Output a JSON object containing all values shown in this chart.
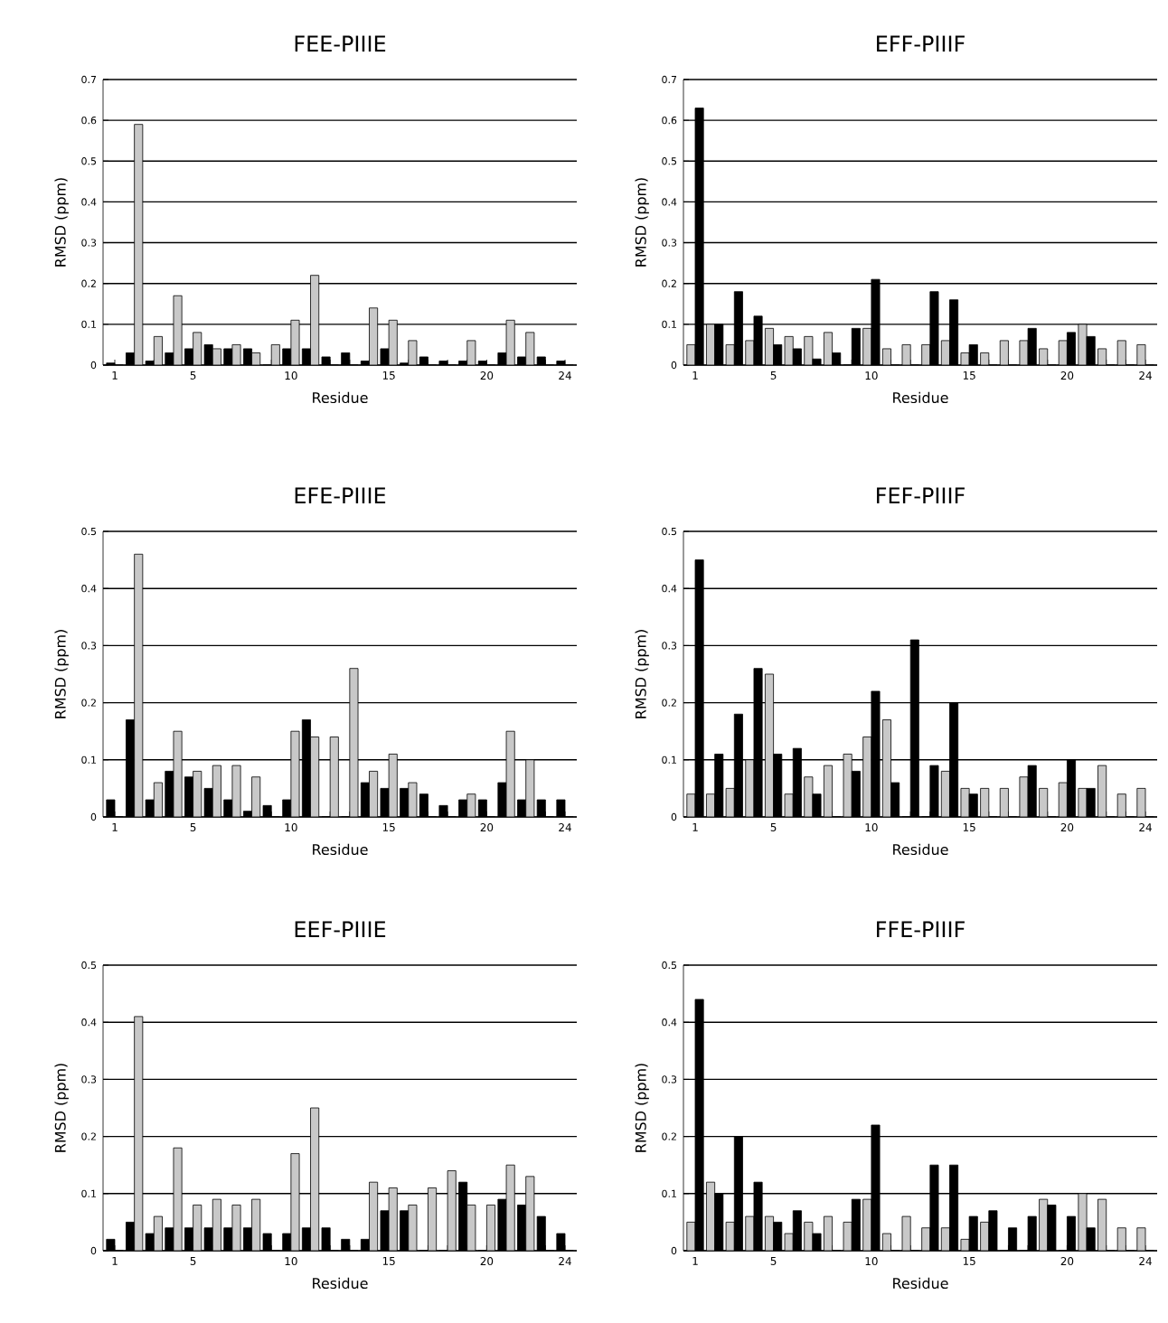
{
  "chart_data": [
    {
      "type": "bar",
      "title": "FEE-PIIIE",
      "xlabel": "Residue",
      "ylabel": "RMSD (ppm)",
      "categories": [
        "1",
        null,
        null,
        null,
        "5",
        null,
        null,
        null,
        null,
        "10",
        null,
        null,
        null,
        null,
        "15",
        null,
        null,
        null,
        null,
        "20",
        null,
        null,
        null,
        "24"
      ],
      "ylim": [
        0,
        0.7
      ],
      "yticks": [
        0,
        0.1,
        0.2,
        0.3,
        0.4,
        0.5,
        0.6,
        0.7
      ],
      "grid": "y",
      "series": [
        {
          "color": "#000000",
          "values": [
            0.005,
            0.03,
            0.01,
            0.03,
            0.04,
            0.05,
            0.04,
            0.04,
            0,
            0.04,
            0.04,
            0.02,
            0.03,
            0.01,
            0.04,
            0.005,
            0.02,
            0.01,
            0.01,
            0.01,
            0.03,
            0.02,
            0.02,
            0.01
          ]
        },
        {
          "color": "#c8c8c8",
          "values": [
            0,
            0.59,
            0.07,
            0.17,
            0.08,
            0.04,
            0.05,
            0.03,
            0.05,
            0.11,
            0.22,
            0,
            0,
            0.14,
            0.11,
            0.06,
            0,
            0,
            0.06,
            0,
            0.11,
            0.08,
            0,
            0
          ]
        }
      ]
    },
    {
      "type": "bar",
      "title": "EFF-PIIIF",
      "xlabel": "Residue",
      "ylabel": "RMSD (ppm)",
      "categories": [
        "1",
        null,
        null,
        null,
        "5",
        null,
        null,
        null,
        null,
        "10",
        null,
        null,
        null,
        null,
        "15",
        null,
        null,
        null,
        null,
        "20",
        null,
        null,
        null,
        "24"
      ],
      "ylim": [
        0,
        0.7
      ],
      "yticks": [
        0,
        0.1,
        0.2,
        0.3,
        0.4,
        0.5,
        0.6,
        0.7
      ],
      "grid": "y",
      "series": [
        {
          "color": "#c8c8c8",
          "values": [
            0.05,
            0.1,
            0.05,
            0.06,
            0.09,
            0.07,
            0.07,
            0.08,
            0,
            0.09,
            0.04,
            0.05,
            0.05,
            0.06,
            0.03,
            0.03,
            0.06,
            0.06,
            0.04,
            0.06,
            0.1,
            0.04,
            0.06,
            0.05
          ]
        },
        {
          "color": "#000000",
          "values": [
            0.63,
            0.1,
            0.18,
            0.12,
            0.05,
            0.04,
            0.015,
            0.03,
            0.09,
            0.21,
            0,
            0,
            0.18,
            0.16,
            0.05,
            0,
            0,
            0.09,
            0,
            0.08,
            0.07,
            0,
            0,
            0
          ]
        }
      ]
    },
    {
      "type": "bar",
      "title": "EFE-PIIIE",
      "xlabel": "Residue",
      "ylabel": "RMSD (ppm)",
      "categories": [
        "1",
        null,
        null,
        null,
        "5",
        null,
        null,
        null,
        null,
        "10",
        null,
        null,
        null,
        null,
        "15",
        null,
        null,
        null,
        null,
        "20",
        null,
        null,
        null,
        "24"
      ],
      "ylim": [
        0,
        0.5
      ],
      "yticks": [
        0,
        0.1,
        0.2,
        0.3,
        0.4,
        0.5
      ],
      "grid": "y",
      "series": [
        {
          "color": "#000000",
          "values": [
            0.03,
            0.17,
            0.03,
            0.08,
            0.07,
            0.05,
            0.03,
            0.01,
            0.02,
            0.03,
            0.17,
            0,
            0,
            0.06,
            0.05,
            0.05,
            0.04,
            0.02,
            0.03,
            0.03,
            0.06,
            0.03,
            0.03,
            0.03
          ]
        },
        {
          "color": "#c8c8c8",
          "values": [
            0,
            0.46,
            0.06,
            0.15,
            0.08,
            0.09,
            0.09,
            0.07,
            0,
            0.15,
            0.14,
            0.14,
            0.26,
            0.08,
            0.11,
            0.06,
            0,
            0,
            0.04,
            0,
            0.15,
            0.1,
            0,
            0
          ]
        }
      ]
    },
    {
      "type": "bar",
      "title": "FEF-PIIIF",
      "xlabel": "Residue",
      "ylabel": "RMSD (ppm)",
      "categories": [
        "1",
        null,
        null,
        null,
        "5",
        null,
        null,
        null,
        null,
        "10",
        null,
        null,
        null,
        null,
        "15",
        null,
        null,
        null,
        null,
        "20",
        null,
        null,
        null,
        "24"
      ],
      "ylim": [
        0,
        0.5
      ],
      "yticks": [
        0,
        0.1,
        0.2,
        0.3,
        0.4,
        0.5
      ],
      "grid": "y",
      "series": [
        {
          "color": "#c8c8c8",
          "values": [
            0.04,
            0.04,
            0.05,
            0.1,
            0.25,
            0.04,
            0.07,
            0.09,
            0.11,
            0.14,
            0.17,
            0,
            0,
            0.08,
            0.05,
            0.05,
            0.05,
            0.07,
            0.05,
            0.06,
            0.05,
            0.09,
            0.04,
            0.05
          ]
        },
        {
          "color": "#000000",
          "values": [
            0.45,
            0.11,
            0.18,
            0.26,
            0.11,
            0.12,
            0.04,
            0,
            0.08,
            0.22,
            0.06,
            0.31,
            0.09,
            0.2,
            0.04,
            0,
            0,
            0.09,
            0,
            0.1,
            0.05,
            0,
            0,
            0
          ]
        }
      ]
    },
    {
      "type": "bar",
      "title": "EEF-PIIIE",
      "xlabel": "Residue",
      "ylabel": "RMSD (ppm)",
      "categories": [
        "1",
        null,
        null,
        null,
        "5",
        null,
        null,
        null,
        null,
        "10",
        null,
        null,
        null,
        null,
        "15",
        null,
        null,
        null,
        null,
        "20",
        null,
        null,
        null,
        "24"
      ],
      "ylim": [
        0,
        0.5
      ],
      "yticks": [
        0,
        0.1,
        0.2,
        0.3,
        0.4,
        0.5
      ],
      "grid": "y",
      "series": [
        {
          "color": "#000000",
          "values": [
            0.02,
            0.05,
            0.03,
            0.04,
            0.04,
            0.04,
            0.04,
            0.04,
            0.03,
            0.03,
            0.04,
            0.04,
            0.02,
            0.02,
            0.07,
            0.07,
            0,
            0,
            0.12,
            0,
            0.09,
            0.08,
            0.06,
            0.03
          ]
        },
        {
          "color": "#c8c8c8",
          "values": [
            0,
            0.41,
            0.06,
            0.18,
            0.08,
            0.09,
            0.08,
            0.09,
            0,
            0.17,
            0.25,
            0,
            0,
            0.12,
            0.11,
            0.08,
            0.11,
            0.14,
            0.08,
            0.08,
            0.15,
            0.13,
            0,
            0
          ]
        }
      ]
    },
    {
      "type": "bar",
      "title": "FFE-PIIIF",
      "xlabel": "Residue",
      "ylabel": "RMSD (ppm)",
      "categories": [
        "1",
        null,
        null,
        null,
        "5",
        null,
        null,
        null,
        null,
        "10",
        null,
        null,
        null,
        null,
        "15",
        null,
        null,
        null,
        null,
        "20",
        null,
        null,
        null,
        "24"
      ],
      "ylim": [
        0,
        0.5
      ],
      "yticks": [
        0,
        0.1,
        0.2,
        0.3,
        0.4,
        0.5
      ],
      "grid": "y",
      "series": [
        {
          "color": "#c8c8c8",
          "values": [
            0.05,
            0.12,
            0.05,
            0.06,
            0.06,
            0.03,
            0.05,
            0.06,
            0.05,
            0.09,
            0.03,
            0.06,
            0.04,
            0.04,
            0.02,
            0.05,
            0,
            0,
            0.09,
            0,
            0.1,
            0.09,
            0.04,
            0.04
          ]
        },
        {
          "color": "#000000",
          "values": [
            0.44,
            0.1,
            0.2,
            0.12,
            0.05,
            0.07,
            0.03,
            0,
            0.09,
            0.22,
            0,
            0,
            0.15,
            0.15,
            0.06,
            0.07,
            0.04,
            0.06,
            0.08,
            0.06,
            0.04,
            0,
            0,
            0
          ]
        }
      ]
    }
  ]
}
